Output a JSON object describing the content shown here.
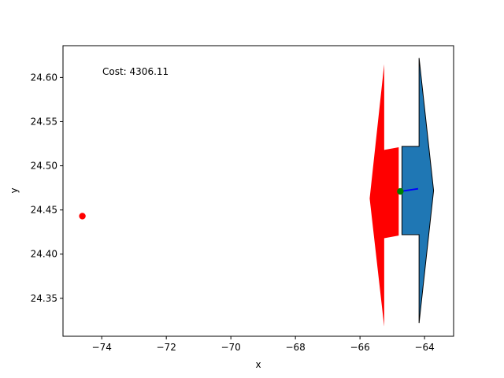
{
  "chart_data": {
    "type": "scatter",
    "title": "",
    "xlabel": "x",
    "ylabel": "y",
    "xlim": [
      -75.2,
      -63.1
    ],
    "ylim": [
      24.307,
      24.636
    ],
    "xticks": [
      -74,
      -72,
      -70,
      -68,
      -66,
      -64
    ],
    "yticks": [
      24.35,
      24.4,
      24.45,
      24.5,
      24.55,
      24.6
    ],
    "xtick_labels": [
      "−74",
      "−72",
      "−70",
      "−68",
      "−66",
      "−64"
    ],
    "ytick_labels": [
      "24.35",
      "24.40",
      "24.45",
      "24.50",
      "24.55",
      "24.60"
    ],
    "grid": false,
    "annotation": "Cost: 4306.11",
    "polygons": [
      {
        "color": "#ff0000",
        "edge": "none",
        "points": [
          [
            -65.25,
            24.615
          ],
          [
            -65.25,
            24.518
          ],
          [
            -64.8,
            24.521
          ],
          [
            -64.8,
            24.421
          ],
          [
            -65.25,
            24.418
          ],
          [
            -65.25,
            24.318
          ],
          [
            -65.7,
            24.463
          ]
        ]
      },
      {
        "color": "#1f77b4",
        "edge": "#000000",
        "points": [
          [
            -64.17,
            24.622
          ],
          [
            -64.17,
            24.522
          ],
          [
            -64.7,
            24.522
          ],
          [
            -64.7,
            24.422
          ],
          [
            -64.17,
            24.422
          ],
          [
            -64.17,
            24.322
          ],
          [
            -63.72,
            24.472
          ]
        ]
      }
    ],
    "points": [
      {
        "name": "start",
        "x": -74.6,
        "y": 24.443,
        "color": "#ff0000"
      },
      {
        "name": "position",
        "x": -64.75,
        "y": 24.471,
        "color": "#008000"
      }
    ],
    "segments": [
      {
        "color": "#0000ff",
        "x1": -64.75,
        "y1": 24.471,
        "x2": -64.2,
        "y2": 24.474
      }
    ]
  }
}
